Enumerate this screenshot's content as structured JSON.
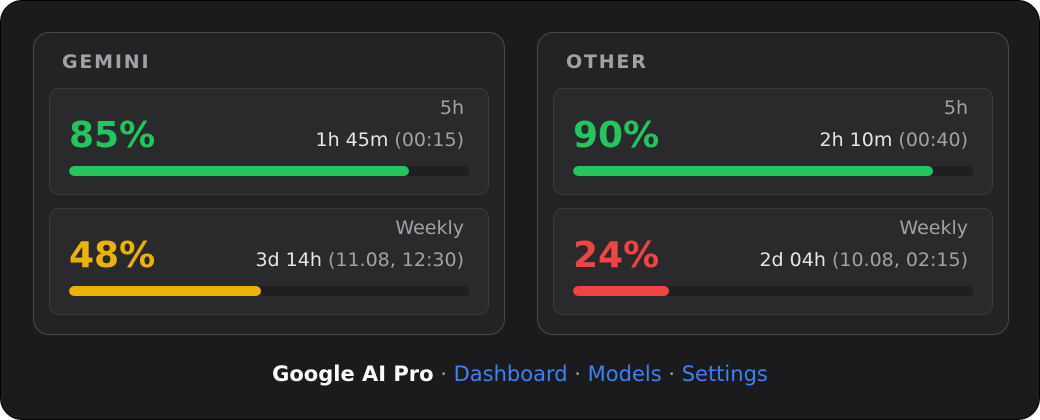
{
  "panels": [
    {
      "title": "GEMINI",
      "limits": [
        {
          "period": "5h",
          "percent": {
            "value": 85,
            "label": "85%"
          },
          "remaining": "1h 45m",
          "reset": "(00:15)",
          "color": "#22c55e"
        },
        {
          "period": "Weekly",
          "percent": {
            "value": 48,
            "label": "48%"
          },
          "remaining": "3d 14h",
          "reset": "(11.08, 12:30)",
          "color": "#eab308"
        }
      ]
    },
    {
      "title": "OTHER",
      "limits": [
        {
          "period": "5h",
          "percent": {
            "value": 90,
            "label": "90%"
          },
          "remaining": "2h 10m",
          "reset": "(00:40)",
          "color": "#22c55e"
        },
        {
          "period": "Weekly",
          "percent": {
            "value": 24,
            "label": "24%"
          },
          "remaining": "2d 04h",
          "reset": "(10.08, 02:15)",
          "color": "#ef4444"
        }
      ]
    }
  ],
  "footer": {
    "brand": "Google AI Pro",
    "separator": "·",
    "links": [
      "Dashboard",
      "Models",
      "Settings"
    ]
  }
}
